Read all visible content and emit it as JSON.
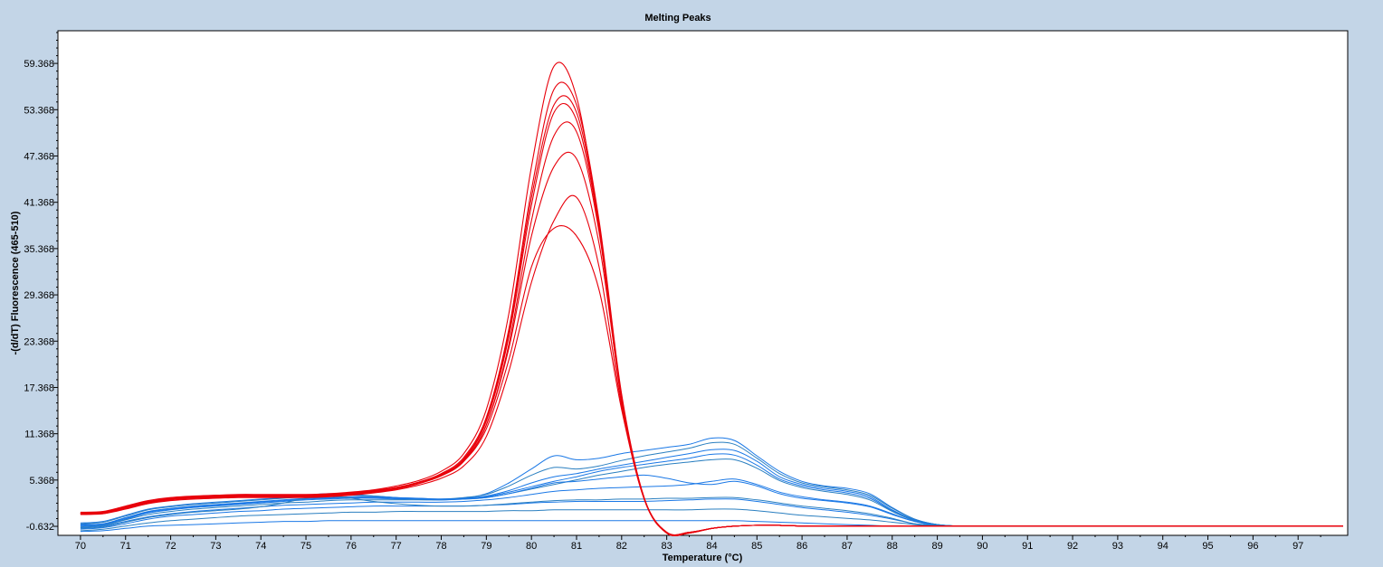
{
  "chart_data": {
    "type": "line",
    "title": "Melting Peaks",
    "xlabel": "Temperature (°C)",
    "ylabel": "-(d/dT) Fluorescence (465-510)",
    "xlim": [
      69.5,
      98.1
    ],
    "ylim": [
      -1.8,
      63.6
    ],
    "x_ticks": [
      70,
      71,
      72,
      73,
      74,
      75,
      76,
      77,
      78,
      79,
      80,
      81,
      82,
      83,
      84,
      85,
      86,
      87,
      88,
      89,
      90,
      91,
      92,
      93,
      94,
      95,
      96,
      97
    ],
    "y_ticks": [
      -0.632,
      5.368,
      11.368,
      17.368,
      23.368,
      29.368,
      35.368,
      41.368,
      47.368,
      53.368,
      59.368
    ],
    "grid": false,
    "legend": "none",
    "colors": {
      "red_group": "#e8000b",
      "blue_group": "#1a78e6",
      "blue_dark": "#2a7fc0"
    },
    "x": [
      70,
      70.5,
      71,
      71.5,
      72,
      72.5,
      73,
      73.5,
      74,
      74.5,
      75,
      75.5,
      76,
      76.5,
      77,
      77.5,
      78,
      78.5,
      79,
      79.5,
      80,
      80.5,
      81,
      81.5,
      82,
      82.5,
      83,
      83.5,
      84,
      84.5,
      85,
      85.5,
      86,
      86.5,
      87,
      87.5,
      88,
      88.5,
      89,
      89.5,
      90,
      91,
      92,
      93,
      94,
      95,
      96,
      97,
      98
    ],
    "series": [
      {
        "group": "red",
        "values": [
          1.0,
          1.1,
          1.8,
          2.5,
          2.9,
          3.1,
          3.2,
          3.3,
          3.3,
          3.3,
          3.3,
          3.4,
          3.6,
          3.9,
          4.3,
          5.0,
          6.0,
          8.0,
          13.0,
          24.0,
          41.0,
          53.0,
          52.0,
          38.0,
          16.0,
          3.0,
          -1.5,
          -1.5,
          -0.9,
          -0.6,
          -0.5,
          -0.5,
          -0.6,
          -0.6,
          -0.6,
          -0.6,
          -0.6,
          -0.6,
          -0.6,
          -0.6,
          -0.6,
          -0.6,
          -0.6,
          -0.6,
          -0.6,
          -0.6,
          -0.6,
          -0.6,
          -0.6
        ]
      },
      {
        "group": "red",
        "values": [
          1.1,
          1.2,
          1.9,
          2.6,
          3.0,
          3.2,
          3.3,
          3.4,
          3.4,
          3.4,
          3.4,
          3.5,
          3.7,
          4.0,
          4.4,
          5.1,
          6.2,
          8.3,
          13.5,
          25.0,
          43.0,
          56.0,
          54.0,
          39.0,
          16.5,
          3.1,
          -1.4,
          -1.4,
          -0.9,
          -0.6,
          -0.5,
          -0.5,
          -0.6,
          -0.6,
          -0.6,
          -0.6,
          -0.6,
          -0.6,
          -0.6,
          -0.6,
          -0.6,
          -0.6,
          -0.6,
          -0.6,
          -0.6,
          -0.6,
          -0.6,
          -0.6,
          -0.6
        ]
      },
      {
        "group": "red",
        "values": [
          1.0,
          1.0,
          1.7,
          2.4,
          2.8,
          3.0,
          3.1,
          3.2,
          3.2,
          3.2,
          3.2,
          3.3,
          3.5,
          3.8,
          4.2,
          4.9,
          5.9,
          7.8,
          12.5,
          23.0,
          39.0,
          50.0,
          50.5,
          37.5,
          16.0,
          3.0,
          -1.5,
          -1.5,
          -0.9,
          -0.6,
          -0.5,
          -0.5,
          -0.6,
          -0.6,
          -0.6,
          -0.6,
          -0.6,
          -0.6,
          -0.6,
          -0.6,
          -0.6,
          -0.6,
          -0.6,
          -0.6,
          -0.6,
          -0.6,
          -0.6,
          -0.6,
          -0.6
        ]
      },
      {
        "group": "red",
        "values": [
          1.2,
          1.3,
          2.0,
          2.7,
          3.1,
          3.3,
          3.4,
          3.5,
          3.5,
          3.5,
          3.5,
          3.6,
          3.8,
          4.1,
          4.6,
          5.3,
          6.5,
          8.8,
          14.5,
          27.0,
          46.0,
          59.0,
          55.0,
          38.0,
          15.5,
          2.9,
          -1.5,
          -1.5,
          -0.9,
          -0.6,
          -0.5,
          -0.5,
          -0.6,
          -0.6,
          -0.6,
          -0.6,
          -0.6,
          -0.6,
          -0.6,
          -0.6,
          -0.6,
          -0.6,
          -0.6,
          -0.6,
          -0.6,
          -0.6,
          -0.6,
          -0.6,
          -0.6
        ]
      },
      {
        "group": "red",
        "values": [
          0.9,
          1.0,
          1.6,
          2.3,
          2.7,
          2.9,
          3.0,
          3.1,
          3.1,
          3.1,
          3.1,
          3.2,
          3.4,
          3.7,
          4.1,
          4.7,
          5.6,
          7.2,
          11.0,
          19.5,
          31.0,
          39.0,
          42.0,
          33.0,
          15.0,
          3.0,
          -1.4,
          -1.5,
          -0.9,
          -0.6,
          -0.5,
          -0.5,
          -0.6,
          -0.6,
          -0.6,
          -0.6,
          -0.6,
          -0.6,
          -0.6,
          -0.6,
          -0.6,
          -0.6,
          -0.6,
          -0.6,
          -0.6,
          -0.6,
          -0.6,
          -0.6,
          -0.6
        ]
      },
      {
        "group": "red",
        "values": [
          1.0,
          1.1,
          1.8,
          2.5,
          2.9,
          3.1,
          3.2,
          3.3,
          3.3,
          3.3,
          3.3,
          3.4,
          3.6,
          3.9,
          4.3,
          5.0,
          6.0,
          7.9,
          12.5,
          22.5,
          37.0,
          46.0,
          47.0,
          36.0,
          16.0,
          3.0,
          -1.5,
          -1.5,
          -0.9,
          -0.6,
          -0.5,
          -0.5,
          -0.6,
          -0.6,
          -0.6,
          -0.6,
          -0.6,
          -0.6,
          -0.6,
          -0.6,
          -0.6,
          -0.6,
          -0.6,
          -0.6,
          -0.6,
          -0.6,
          -0.6,
          -0.6,
          -0.6
        ]
      },
      {
        "group": "red",
        "values": [
          1.1,
          1.2,
          1.9,
          2.6,
          3.0,
          3.2,
          3.3,
          3.4,
          3.4,
          3.4,
          3.4,
          3.5,
          3.7,
          4.0,
          4.4,
          5.1,
          6.1,
          8.1,
          13.2,
          24.5,
          42.0,
          54.0,
          53.0,
          38.5,
          16.2,
          3.0,
          -1.4,
          -1.4,
          -0.9,
          -0.6,
          -0.5,
          -0.5,
          -0.6,
          -0.6,
          -0.6,
          -0.6,
          -0.6,
          -0.6,
          -0.6,
          -0.6,
          -0.6,
          -0.6,
          -0.6,
          -0.6,
          -0.6,
          -0.6,
          -0.6,
          -0.6,
          -0.6
        ]
      },
      {
        "group": "red",
        "values": [
          1.0,
          1.1,
          1.8,
          2.5,
          2.9,
          3.1,
          3.2,
          3.3,
          3.3,
          3.3,
          3.3,
          3.4,
          3.6,
          3.9,
          4.3,
          5.0,
          6.0,
          7.8,
          12.0,
          21.0,
          33.0,
          38.0,
          37.0,
          30.0,
          14.5,
          2.9,
          -1.5,
          -1.5,
          -0.9,
          -0.6,
          -0.5,
          -0.5,
          -0.6,
          -0.6,
          -0.6,
          -0.6,
          -0.6,
          -0.6,
          -0.6,
          -0.6,
          -0.6,
          -0.6,
          -0.6,
          -0.6,
          -0.6,
          -0.6,
          -0.6,
          -0.6,
          -0.6
        ]
      },
      {
        "group": "blue",
        "values": [
          -0.2,
          0.0,
          0.8,
          1.6,
          2.0,
          2.3,
          2.5,
          2.7,
          2.9,
          3.1,
          3.4,
          3.6,
          3.5,
          3.3,
          3.1,
          2.9,
          2.8,
          3.0,
          3.6,
          5.0,
          6.8,
          8.5,
          8.0,
          8.2,
          8.8,
          9.2,
          9.6,
          10.0,
          10.8,
          10.5,
          8.5,
          6.5,
          5.2,
          4.6,
          4.3,
          3.6,
          1.8,
          0.3,
          -0.4,
          -0.6,
          -0.6,
          -0.6,
          -0.6,
          -0.6,
          -0.6,
          -0.6,
          -0.6,
          -0.6,
          -0.6
        ]
      },
      {
        "group": "blue",
        "values": [
          -0.3,
          -0.1,
          0.7,
          1.5,
          1.9,
          2.2,
          2.4,
          2.6,
          2.8,
          3.0,
          3.2,
          3.4,
          3.4,
          3.3,
          3.1,
          3.0,
          2.9,
          3.1,
          3.5,
          4.6,
          6.0,
          7.0,
          6.8,
          7.2,
          7.9,
          8.5,
          9.0,
          9.5,
          10.2,
          10.0,
          8.2,
          6.2,
          5.0,
          4.5,
          4.1,
          3.4,
          1.7,
          0.3,
          -0.4,
          -0.6,
          -0.6,
          -0.6,
          -0.6,
          -0.6,
          -0.6,
          -0.6,
          -0.6,
          -0.6,
          -0.6
        ]
      },
      {
        "group": "blue",
        "values": [
          -0.5,
          -0.3,
          0.5,
          1.3,
          1.7,
          2.0,
          2.2,
          2.4,
          2.6,
          2.8,
          3.0,
          3.1,
          3.2,
          3.2,
          3.1,
          3.0,
          2.9,
          3.0,
          3.3,
          4.0,
          5.0,
          5.8,
          6.2,
          6.8,
          7.3,
          7.8,
          8.3,
          8.8,
          9.3,
          9.2,
          7.8,
          5.8,
          4.8,
          4.3,
          3.9,
          3.2,
          1.5,
          0.2,
          -0.4,
          -0.6,
          -0.6,
          -0.6,
          -0.6,
          -0.6,
          -0.6,
          -0.6,
          -0.6,
          -0.6,
          -0.6
        ]
      },
      {
        "group": "blue",
        "values": [
          -0.6,
          -0.4,
          0.3,
          1.1,
          1.5,
          1.8,
          2.0,
          2.2,
          2.4,
          2.6,
          2.8,
          2.9,
          3.0,
          3.0,
          2.9,
          2.9,
          2.9,
          3.0,
          3.2,
          3.8,
          4.5,
          5.2,
          5.8,
          6.5,
          7.0,
          7.4,
          7.8,
          8.2,
          8.7,
          8.6,
          7.3,
          5.5,
          4.6,
          4.1,
          3.7,
          3.0,
          1.4,
          0.2,
          -0.4,
          -0.6,
          -0.6,
          -0.6,
          -0.6,
          -0.6,
          -0.6,
          -0.6,
          -0.6,
          -0.6,
          -0.6
        ]
      },
      {
        "group": "blue",
        "values": [
          -0.7,
          -0.5,
          0.2,
          0.9,
          1.3,
          1.6,
          1.8,
          2.0,
          2.2,
          2.4,
          2.5,
          2.7,
          2.8,
          2.8,
          2.8,
          2.8,
          2.8,
          2.9,
          3.1,
          3.6,
          4.2,
          4.8,
          5.4,
          6.0,
          6.5,
          7.0,
          7.4,
          7.7,
          8.0,
          8.0,
          6.9,
          5.3,
          4.4,
          3.9,
          3.5,
          2.8,
          1.3,
          0.1,
          -0.4,
          -0.6,
          -0.6,
          -0.6,
          -0.6,
          -0.6,
          -0.6,
          -0.6,
          -0.6,
          -0.6,
          -0.6
        ]
      },
      {
        "group": "blue",
        "values": [
          -0.8,
          -0.6,
          0.0,
          0.6,
          1.0,
          1.3,
          1.5,
          1.7,
          1.9,
          2.1,
          2.2,
          2.3,
          2.4,
          2.5,
          2.5,
          2.5,
          2.5,
          2.6,
          2.8,
          3.1,
          3.5,
          3.9,
          4.1,
          4.3,
          4.4,
          4.5,
          4.6,
          4.8,
          5.2,
          5.5,
          4.8,
          3.8,
          3.2,
          2.8,
          2.5,
          2.0,
          1.0,
          0.0,
          -0.5,
          -0.6,
          -0.6,
          -0.6,
          -0.6,
          -0.6,
          -0.6,
          -0.6,
          -0.6,
          -0.6,
          -0.6
        ]
      },
      {
        "group": "blue",
        "values": [
          -1.0,
          -0.8,
          -0.3,
          0.3,
          0.7,
          0.9,
          1.1,
          1.3,
          1.4,
          1.6,
          1.7,
          1.8,
          1.9,
          2.0,
          2.0,
          2.0,
          2.0,
          2.0,
          2.1,
          2.2,
          2.4,
          2.5,
          2.6,
          2.6,
          2.6,
          2.6,
          2.7,
          2.8,
          2.9,
          2.9,
          2.6,
          2.2,
          1.8,
          1.5,
          1.2,
          0.8,
          0.3,
          -0.3,
          -0.5,
          -0.6,
          -0.6,
          -0.6,
          -0.6,
          -0.6,
          -0.6,
          -0.6,
          -0.6,
          -0.6,
          -0.6
        ]
      },
      {
        "group": "blue",
        "values": [
          -1.2,
          -1.0,
          -0.6,
          -0.2,
          0.1,
          0.3,
          0.5,
          0.7,
          0.8,
          0.9,
          1.0,
          1.1,
          1.2,
          1.2,
          1.3,
          1.3,
          1.3,
          1.3,
          1.3,
          1.4,
          1.4,
          1.5,
          1.5,
          1.5,
          1.5,
          1.5,
          1.5,
          1.5,
          1.6,
          1.6,
          1.4,
          1.1,
          0.8,
          0.6,
          0.4,
          0.2,
          -0.1,
          -0.4,
          -0.6,
          -0.6,
          -0.6,
          -0.6,
          -0.6,
          -0.6,
          -0.6,
          -0.6,
          -0.6,
          -0.6,
          -0.6
        ]
      },
      {
        "group": "blue",
        "values": [
          -1.3,
          -1.2,
          -0.9,
          -0.6,
          -0.5,
          -0.4,
          -0.3,
          -0.2,
          -0.1,
          0.0,
          0.0,
          0.1,
          0.1,
          0.1,
          0.1,
          0.1,
          0.1,
          0.1,
          0.1,
          0.1,
          0.1,
          0.1,
          0.1,
          0.1,
          0.1,
          0.1,
          0.1,
          0.1,
          0.1,
          0.1,
          0.0,
          -0.1,
          -0.2,
          -0.3,
          -0.4,
          -0.5,
          -0.6,
          -0.6,
          -0.6,
          -0.6,
          -0.6,
          -0.6,
          -0.6,
          -0.6,
          -0.6,
          -0.6,
          -0.6,
          -0.6,
          -0.6
        ]
      },
      {
        "group": "blue",
        "values": [
          -0.4,
          -0.3,
          0.4,
          1.2,
          1.6,
          1.9,
          2.1,
          2.3,
          2.5,
          2.7,
          2.9,
          3.0,
          3.1,
          3.1,
          3.0,
          2.9,
          2.8,
          2.9,
          3.1,
          3.6,
          4.3,
          5.0,
          5.2,
          5.5,
          5.8,
          6.0,
          5.6,
          5.0,
          4.8,
          5.2,
          4.6,
          3.6,
          3.0,
          2.7,
          2.4,
          1.9,
          0.9,
          0.0,
          -0.5,
          -0.6,
          -0.6,
          -0.6,
          -0.6,
          -0.6,
          -0.6,
          -0.6,
          -0.6,
          -0.6,
          -0.6
        ]
      },
      {
        "group": "blue",
        "values": [
          -0.9,
          -0.7,
          -0.1,
          0.5,
          0.9,
          1.2,
          1.4,
          1.6,
          1.9,
          2.4,
          3.0,
          3.3,
          3.0,
          2.6,
          2.3,
          2.1,
          2.0,
          2.0,
          2.1,
          2.3,
          2.5,
          2.7,
          2.8,
          2.8,
          2.9,
          2.9,
          3.0,
          3.0,
          3.1,
          3.1,
          2.8,
          2.4,
          2.0,
          1.7,
          1.4,
          1.0,
          0.4,
          -0.3,
          -0.5,
          -0.6,
          -0.6,
          -0.6,
          -0.6,
          -0.6,
          -0.6,
          -0.6,
          -0.6,
          -0.6,
          -0.6
        ]
      }
    ]
  }
}
